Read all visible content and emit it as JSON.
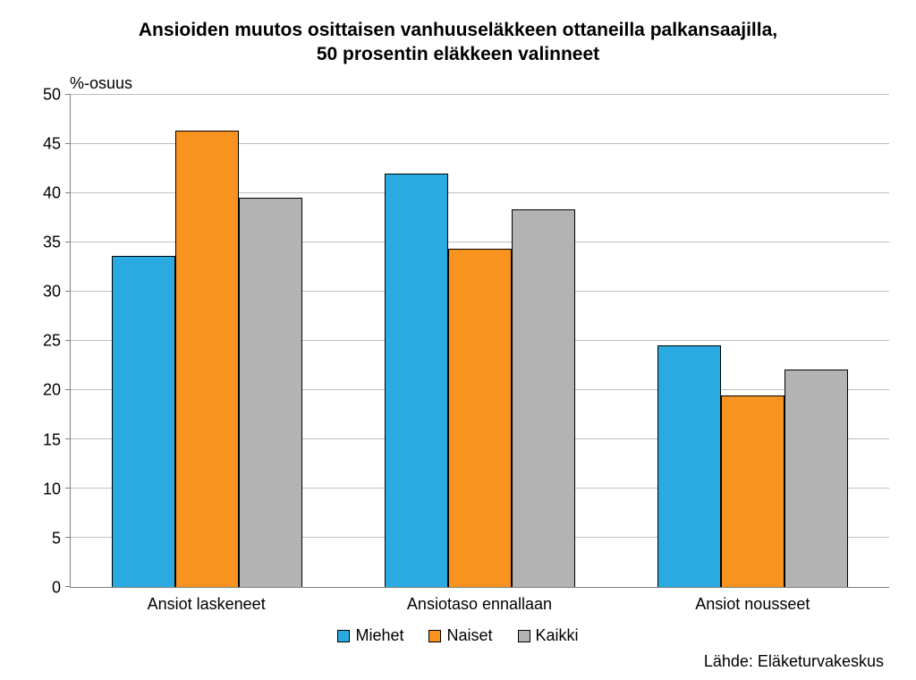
{
  "chart": {
    "type": "bar",
    "title_line1": "Ansioiden muutos osittaisen vanhuuseläkkeen ottaneilla palkansaajilla,",
    "title_line2": "50 prosentin eläkkeen valinneet",
    "title_fontsize": 21,
    "ylabel": "%-osuus",
    "label_fontsize": 18,
    "ylim": [
      0,
      50
    ],
    "ytick_step": 5,
    "yticks": [
      0,
      5,
      10,
      15,
      20,
      25,
      30,
      35,
      40,
      45,
      50
    ],
    "categories": [
      "Ansiot laskeneet",
      "Ansiotaso ennallaan",
      "Ansiot nousseet"
    ],
    "series": [
      {
        "name": "Miehet",
        "color": "#29abe2",
        "values": [
          33.6,
          42.0,
          24.5
        ]
      },
      {
        "name": "Naiset",
        "color": "#f7931e",
        "values": [
          46.3,
          34.3,
          19.4
        ]
      },
      {
        "name": "Kaikki",
        "color": "#b3b3b3",
        "values": [
          39.5,
          38.3,
          22.1
        ]
      }
    ],
    "background_color": "#ffffff",
    "grid_color": "#bfbfbf",
    "axis_color": "#808080",
    "bar_border_color": "#000000",
    "source": "Lähde: Eläketurvakeskus"
  }
}
